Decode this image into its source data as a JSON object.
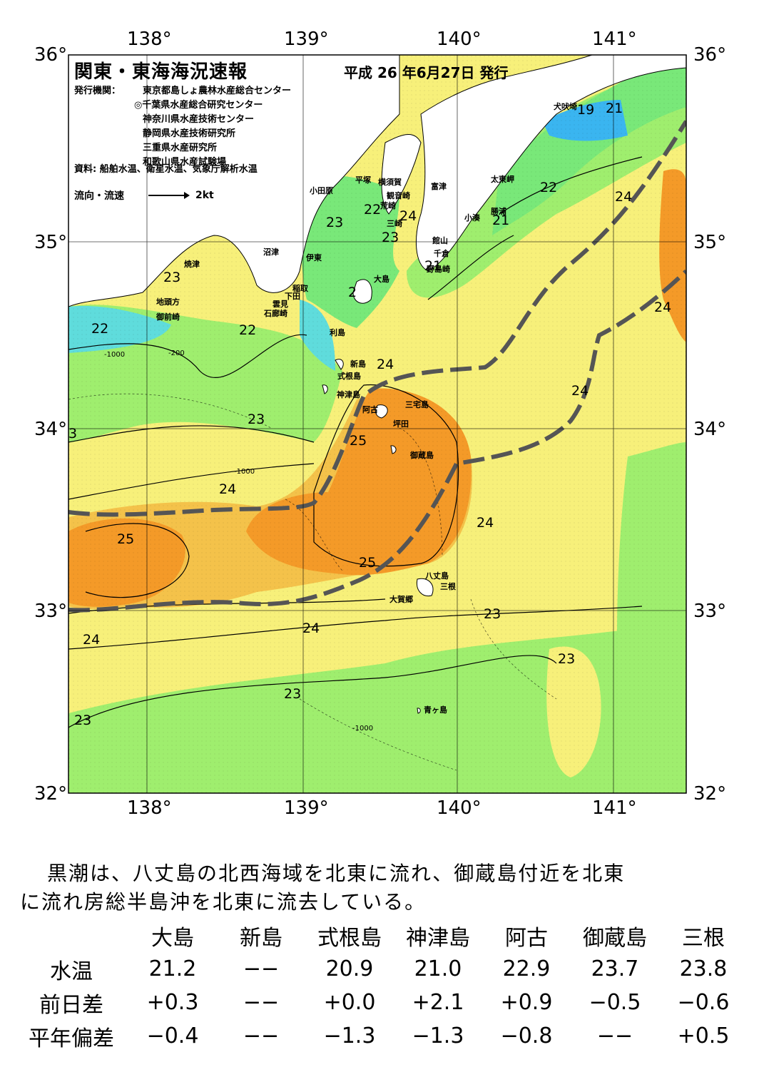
{
  "header": {
    "title": "関東・東海海況速報",
    "issue_date": "平成 26 年6月27日 発行",
    "publisher_label": "発行機関：",
    "publishers": [
      "東京都島しょ農林水産総合センター",
      "◎千葉県水産総合研究センター",
      "神奈川県水産技術センター",
      "静岡県水産技術研究所",
      "三重県水産研究所",
      "和歌山県水産試験場"
    ],
    "sources": "資料: 船舶水温、衛星水温、気象庁解析水温",
    "legend_label": "流向・流速",
    "legend_scale": "2kt"
  },
  "map": {
    "lon_ticks": [
      "138°",
      "139°",
      "140°",
      "141°"
    ],
    "lat_ticks": [
      "36°",
      "35°",
      "34°",
      "33°",
      "32°"
    ],
    "place_names": [
      "犬吠埼",
      "太東岬",
      "勝浦",
      "小湊",
      "富津",
      "横須賀",
      "観音崎",
      "平塚",
      "小田原",
      "荒崎",
      "三崎",
      "館山",
      "千倉",
      "野島崎",
      "沼津",
      "伊東",
      "焼津",
      "稲取",
      "下田",
      "雲見",
      "石廊崎",
      "地頭方",
      "御前崎",
      "大島",
      "利島",
      "新島",
      "式根島",
      "神津島",
      "三宅島",
      "阿古",
      "坪田",
      "御蔵島",
      "八丈島",
      "三根",
      "大賀郷",
      "青ヶ島"
    ],
    "isotherm_labels": [
      "19",
      "21",
      "22",
      "24",
      "21",
      "22",
      "24",
      "23",
      "23",
      "21",
      "23",
      "2",
      "22",
      "22",
      "24",
      "24",
      "24",
      "23",
      "25",
      "3",
      "24",
      "25",
      "24",
      "25",
      "23",
      "24",
      "24",
      "23",
      "23",
      "23"
    ],
    "depth_labels": [
      "-200",
      "-1000"
    ],
    "colors": {
      "land": "#ffffff",
      "t19_20": "#3ab5f0",
      "t20_21": "#5fdcdc",
      "t21_22": "#79e879",
      "t22_23": "#9fee6e",
      "t23_24": "#f7f07a",
      "t24_25": "#f4c24a",
      "t25_26": "#f49a28",
      "kuroshio_axis": "#555555"
    }
  },
  "summary": {
    "line1": "黒潮は、八丈島の北西海域を北東に流れ、御蔵島付近を北東",
    "line2": "に流れ房総半島沖を北東に流去している。"
  },
  "observations": {
    "stations": [
      "大島",
      "新島",
      "式根島",
      "神津島",
      "阿古",
      "御蔵島",
      "三根"
    ],
    "rows": [
      {
        "label": "水温",
        "values": [
          "21.2",
          "−−",
          "20.9",
          "21.0",
          "22.9",
          "23.7",
          "23.8"
        ]
      },
      {
        "label": "前日差",
        "values": [
          "+0.3",
          "−−",
          "+0.0",
          "+2.1",
          "+0.9",
          "−0.5",
          "−0.6"
        ]
      },
      {
        "label": "平年偏差",
        "values": [
          "−0.4",
          "−−",
          "−1.3",
          "−1.3",
          "−0.8",
          "−−",
          "+0.5"
        ]
      }
    ]
  }
}
